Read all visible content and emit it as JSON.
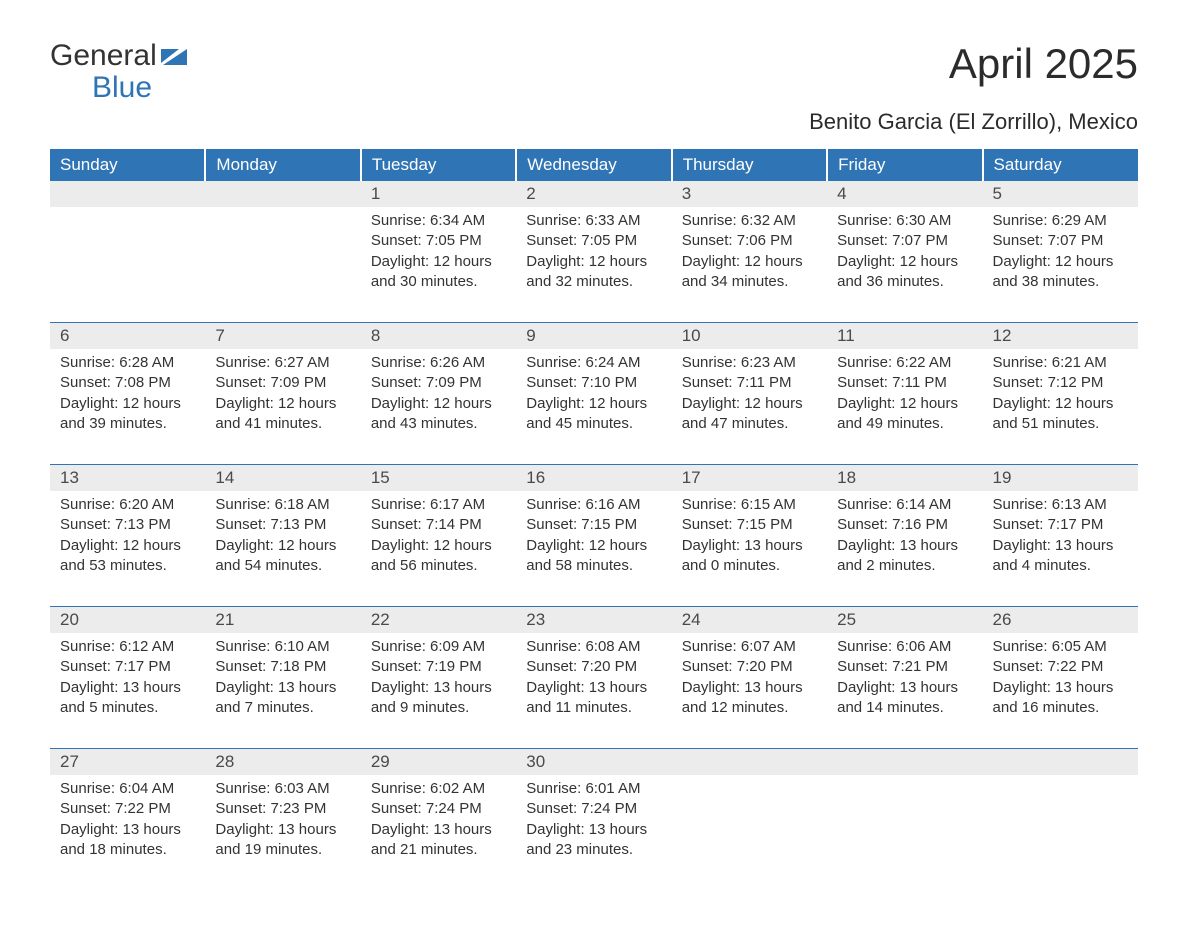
{
  "logo": {
    "text1": "General",
    "text2": "Blue",
    "color1": "#303338",
    "color2": "#2f74b5"
  },
  "title": "April 2025",
  "subtitle": "Benito Garcia (El Zorrillo), Mexico",
  "theme": {
    "header_bg": "#2f74b5",
    "header_fg": "#ffffff",
    "daynum_bg": "#ececec",
    "text_color": "#333333",
    "rule_color": "#2f74b5"
  },
  "day_headers": [
    "Sunday",
    "Monday",
    "Tuesday",
    "Wednesday",
    "Thursday",
    "Friday",
    "Saturday"
  ],
  "weeks": [
    [
      null,
      null,
      {
        "n": "1",
        "sr": "6:34 AM",
        "ss": "7:05 PM",
        "dl": "12 hours and 30 minutes."
      },
      {
        "n": "2",
        "sr": "6:33 AM",
        "ss": "7:05 PM",
        "dl": "12 hours and 32 minutes."
      },
      {
        "n": "3",
        "sr": "6:32 AM",
        "ss": "7:06 PM",
        "dl": "12 hours and 34 minutes."
      },
      {
        "n": "4",
        "sr": "6:30 AM",
        "ss": "7:07 PM",
        "dl": "12 hours and 36 minutes."
      },
      {
        "n": "5",
        "sr": "6:29 AM",
        "ss": "7:07 PM",
        "dl": "12 hours and 38 minutes."
      }
    ],
    [
      {
        "n": "6",
        "sr": "6:28 AM",
        "ss": "7:08 PM",
        "dl": "12 hours and 39 minutes."
      },
      {
        "n": "7",
        "sr": "6:27 AM",
        "ss": "7:09 PM",
        "dl": "12 hours and 41 minutes."
      },
      {
        "n": "8",
        "sr": "6:26 AM",
        "ss": "7:09 PM",
        "dl": "12 hours and 43 minutes."
      },
      {
        "n": "9",
        "sr": "6:24 AM",
        "ss": "7:10 PM",
        "dl": "12 hours and 45 minutes."
      },
      {
        "n": "10",
        "sr": "6:23 AM",
        "ss": "7:11 PM",
        "dl": "12 hours and 47 minutes."
      },
      {
        "n": "11",
        "sr": "6:22 AM",
        "ss": "7:11 PM",
        "dl": "12 hours and 49 minutes."
      },
      {
        "n": "12",
        "sr": "6:21 AM",
        "ss": "7:12 PM",
        "dl": "12 hours and 51 minutes."
      }
    ],
    [
      {
        "n": "13",
        "sr": "6:20 AM",
        "ss": "7:13 PM",
        "dl": "12 hours and 53 minutes."
      },
      {
        "n": "14",
        "sr": "6:18 AM",
        "ss": "7:13 PM",
        "dl": "12 hours and 54 minutes."
      },
      {
        "n": "15",
        "sr": "6:17 AM",
        "ss": "7:14 PM",
        "dl": "12 hours and 56 minutes."
      },
      {
        "n": "16",
        "sr": "6:16 AM",
        "ss": "7:15 PM",
        "dl": "12 hours and 58 minutes."
      },
      {
        "n": "17",
        "sr": "6:15 AM",
        "ss": "7:15 PM",
        "dl": "13 hours and 0 minutes."
      },
      {
        "n": "18",
        "sr": "6:14 AM",
        "ss": "7:16 PM",
        "dl": "13 hours and 2 minutes."
      },
      {
        "n": "19",
        "sr": "6:13 AM",
        "ss": "7:17 PM",
        "dl": "13 hours and 4 minutes."
      }
    ],
    [
      {
        "n": "20",
        "sr": "6:12 AM",
        "ss": "7:17 PM",
        "dl": "13 hours and 5 minutes."
      },
      {
        "n": "21",
        "sr": "6:10 AM",
        "ss": "7:18 PM",
        "dl": "13 hours and 7 minutes."
      },
      {
        "n": "22",
        "sr": "6:09 AM",
        "ss": "7:19 PM",
        "dl": "13 hours and 9 minutes."
      },
      {
        "n": "23",
        "sr": "6:08 AM",
        "ss": "7:20 PM",
        "dl": "13 hours and 11 minutes."
      },
      {
        "n": "24",
        "sr": "6:07 AM",
        "ss": "7:20 PM",
        "dl": "13 hours and 12 minutes."
      },
      {
        "n": "25",
        "sr": "6:06 AM",
        "ss": "7:21 PM",
        "dl": "13 hours and 14 minutes."
      },
      {
        "n": "26",
        "sr": "6:05 AM",
        "ss": "7:22 PM",
        "dl": "13 hours and 16 minutes."
      }
    ],
    [
      {
        "n": "27",
        "sr": "6:04 AM",
        "ss": "7:22 PM",
        "dl": "13 hours and 18 minutes."
      },
      {
        "n": "28",
        "sr": "6:03 AM",
        "ss": "7:23 PM",
        "dl": "13 hours and 19 minutes."
      },
      {
        "n": "29",
        "sr": "6:02 AM",
        "ss": "7:24 PM",
        "dl": "13 hours and 21 minutes."
      },
      {
        "n": "30",
        "sr": "6:01 AM",
        "ss": "7:24 PM",
        "dl": "13 hours and 23 minutes."
      },
      null,
      null,
      null
    ]
  ],
  "labels": {
    "sunrise": "Sunrise: ",
    "sunset": "Sunset: ",
    "daylight": "Daylight: "
  }
}
